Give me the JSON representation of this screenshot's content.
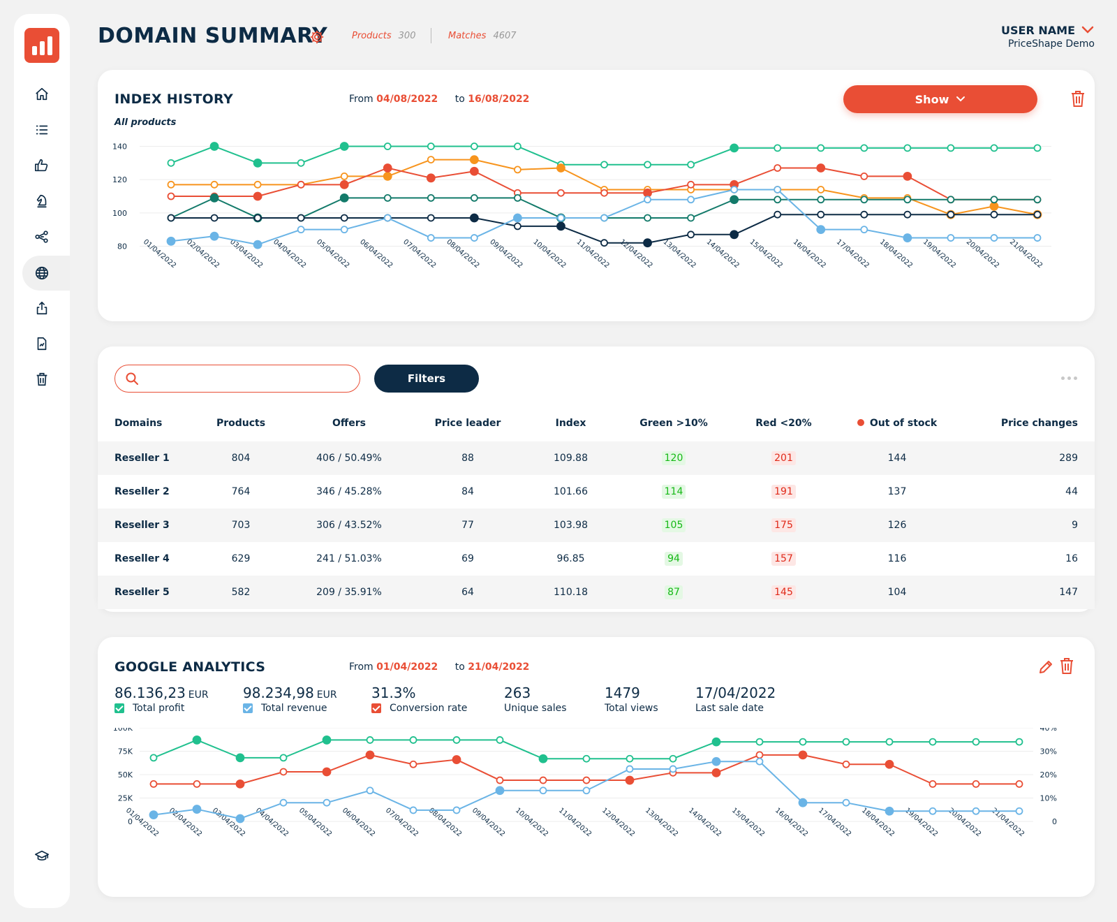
{
  "header": {
    "title": "DOMAIN SUMMARY",
    "products_label": "Products",
    "products_value": "300",
    "matches_label": "Matches",
    "matches_value": "4607",
    "user_name": "USER NAME",
    "user_org": "PriceShape Demo"
  },
  "colors": {
    "accent": "#e94e35",
    "navy": "#0d2b45",
    "green": "#20c08e",
    "orange": "#f7941d",
    "teal": "#137a6a",
    "blue": "#6ab4e6"
  },
  "sidebar": {
    "items": [
      {
        "icon": "home-icon"
      },
      {
        "icon": "list-icon"
      },
      {
        "icon": "thumbs-up-icon"
      },
      {
        "icon": "chess-knight-icon"
      },
      {
        "icon": "share-nodes-icon"
      },
      {
        "icon": "globe-icon",
        "active": true
      },
      {
        "icon": "upload-icon"
      },
      {
        "icon": "report-file-icon"
      },
      {
        "icon": "trash-icon"
      }
    ],
    "footer_icon": "graduation-cap-icon"
  },
  "index_history": {
    "title": "INDEX HISTORY",
    "from_label": "From",
    "from_date": "04/08/2022",
    "to_label": "to",
    "to_date": "16/08/2022",
    "show_label": "Show",
    "subtitle": "All products"
  },
  "table": {
    "search_placeholder": "",
    "filters_label": "Filters",
    "headers": [
      "Domains",
      "Products",
      "Offers",
      "Price leader",
      "Index",
      "Green >10%",
      "Red <20%",
      "Out of stock",
      "Price changes"
    ],
    "rows": [
      {
        "domain": "Reseller 1",
        "products": "804",
        "offers": "406 / 50.49%",
        "leader": "88",
        "index": "109.88",
        "green": "120",
        "red": "201",
        "oos": "144",
        "changes": "289"
      },
      {
        "domain": "Reseller 2",
        "products": "764",
        "offers": "346 / 45.28%",
        "leader": "84",
        "index": "101.66",
        "green": "114",
        "red": "191",
        "oos": "137",
        "changes": "44"
      },
      {
        "domain": "Reseller 3",
        "products": "703",
        "offers": "306 / 43.52%",
        "leader": "77",
        "index": "103.98",
        "green": "105",
        "red": "175",
        "oos": "126",
        "changes": "9"
      },
      {
        "domain": "Reseller 4",
        "products": "629",
        "offers": "241 / 51.03%",
        "leader": "69",
        "index": "96.85",
        "green": "94",
        "red": "157",
        "oos": "116",
        "changes": "16"
      },
      {
        "domain": "Reseller 5",
        "products": "582",
        "offers": "209 / 35.91%",
        "leader": "64",
        "index": "110.18",
        "green": "87",
        "red": "145",
        "oos": "104",
        "changes": "147"
      }
    ]
  },
  "analytics": {
    "title": "GOOGLE ANALYTICS",
    "from_label": "From",
    "from_date": "01/04/2022",
    "to_label": "to",
    "to_date": "21/04/2022",
    "kpis": [
      {
        "value": "86.136,23",
        "unit": "EUR",
        "label": "Total profit",
        "check_color": "#20c08e"
      },
      {
        "value": "98.234,98",
        "unit": "EUR",
        "label": "Total revenue",
        "check_color": "#6ab4e6"
      },
      {
        "value": "31.3%",
        "unit": "",
        "label": "Conversion rate",
        "check_color": "#e94e35"
      },
      {
        "value": "263",
        "unit": "",
        "label": "Unique sales"
      },
      {
        "value": "1479",
        "unit": "",
        "label": "Total views"
      },
      {
        "value": "17/04/2022",
        "unit": "",
        "label": "Last sale date"
      }
    ]
  },
  "chart_data": [
    {
      "type": "line",
      "title": "INDEX HISTORY",
      "subtitle": "All products",
      "categories": [
        "01/04/2022",
        "02/04/2022",
        "03/04/2022",
        "04/04/2022",
        "05/04/2022",
        "06/04/2022",
        "07/04/2022",
        "08/04/2022",
        "09/04/2022",
        "10/04/2022",
        "11/04/2022",
        "12/04/2022",
        "13/04/2022",
        "14/04/2022",
        "15/04/2022",
        "16/04/2022",
        "17/04/2022",
        "18/04/2022",
        "19/04/2022",
        "20/04/2022",
        "21/04/2022"
      ],
      "yticks": [
        80,
        100,
        120,
        140
      ],
      "ylim": [
        76,
        144
      ],
      "series": [
        {
          "name": "green",
          "color": "#20c08e",
          "values": [
            130,
            140,
            130,
            130,
            140,
            140,
            140,
            140,
            140,
            129,
            129,
            129,
            129,
            139,
            139,
            139,
            139,
            139,
            139,
            139,
            139
          ],
          "filled": [
            1,
            2,
            4,
            13
          ]
        },
        {
          "name": "orange",
          "color": "#f7941d",
          "values": [
            117,
            117,
            117,
            117,
            122,
            122,
            132,
            132,
            126,
            127,
            114,
            114,
            114,
            114,
            114,
            114,
            109,
            109,
            99,
            104,
            99
          ],
          "filled": [
            5,
            7,
            9,
            18,
            19,
            20
          ]
        },
        {
          "name": "red",
          "color": "#e94e35",
          "values": [
            110,
            110,
            110,
            117,
            117,
            127,
            121,
            125,
            112,
            112,
            112,
            112,
            117,
            117,
            127,
            127,
            122,
            122,
            108,
            108,
            108
          ],
          "filled": [
            2,
            4,
            5,
            6,
            7,
            11,
            13,
            15,
            17
          ]
        },
        {
          "name": "teal",
          "color": "#137a6a",
          "values": [
            97,
            109,
            97,
            97,
            109,
            109,
            109,
            109,
            109,
            97,
            97,
            97,
            97,
            108,
            108,
            108,
            108,
            108,
            108,
            108,
            108
          ],
          "filled": [
            1,
            2,
            4,
            9,
            13
          ]
        },
        {
          "name": "navy",
          "color": "#0d2b45",
          "values": [
            97,
            97,
            97,
            97,
            97,
            97,
            97,
            97,
            92,
            92,
            82,
            82,
            87,
            87,
            99,
            99,
            99,
            99,
            99,
            99,
            99
          ],
          "filled": [
            7,
            9,
            11,
            13
          ]
        },
        {
          "name": "blue",
          "color": "#6ab4e6",
          "values": [
            83,
            86,
            81,
            90,
            90,
            97,
            85,
            85,
            97,
            97,
            97,
            108,
            108,
            114,
            114,
            90,
            90,
            85,
            85,
            85,
            85
          ],
          "filled": [
            0,
            1,
            2,
            8,
            15,
            17
          ]
        }
      ]
    },
    {
      "type": "line",
      "title": "GOOGLE ANALYTICS",
      "categories": [
        "01/04/2022",
        "02/04/2022",
        "03/04/2022",
        "04/04/2022",
        "05/04/2022",
        "06/04/2022",
        "07/04/2022",
        "08/04/2022",
        "09/04/2022",
        "10/04/2022",
        "11/04/2022",
        "12/04/2022",
        "13/04/2022",
        "14/04/2022",
        "15/04/2022",
        "16/04/2022",
        "17/04/2022",
        "18/04/2022",
        "19/04/2022",
        "20/04/2022",
        "21/04/2022"
      ],
      "y_left_ticks": [
        "0",
        "25K",
        "50K",
        "75K",
        "100K"
      ],
      "y_right_ticks": [
        "0",
        "10%",
        "20%",
        "30%",
        "40%"
      ],
      "ylim": [
        0,
        100000
      ],
      "series": [
        {
          "name": "Total profit",
          "color": "#20c08e",
          "values": [
            68000,
            87000,
            68000,
            68000,
            87000,
            87000,
            87000,
            87000,
            87000,
            67000,
            67000,
            67000,
            67000,
            85000,
            85000,
            85000,
            85000,
            85000,
            85000,
            85000,
            85000
          ],
          "filled": [
            1,
            2,
            4,
            9,
            13
          ]
        },
        {
          "name": "Conversion rate",
          "color": "#e94e35",
          "values": [
            40000,
            40000,
            40000,
            53000,
            53000,
            71000,
            61000,
            66000,
            44000,
            44000,
            44000,
            44000,
            52000,
            52000,
            71000,
            71000,
            61000,
            61000,
            40000,
            40000,
            40000
          ],
          "filled": [
            2,
            4,
            5,
            7,
            11,
            13,
            15,
            17
          ]
        },
        {
          "name": "Total revenue",
          "color": "#6ab4e6",
          "values": [
            7000,
            13000,
            3000,
            20000,
            20000,
            33000,
            12000,
            12000,
            33000,
            33000,
            33000,
            56000,
            56000,
            64000,
            64000,
            20000,
            20000,
            11000,
            11000,
            11000,
            11000
          ],
          "filled": [
            0,
            1,
            2,
            8,
            13,
            15,
            17
          ]
        }
      ]
    }
  ]
}
